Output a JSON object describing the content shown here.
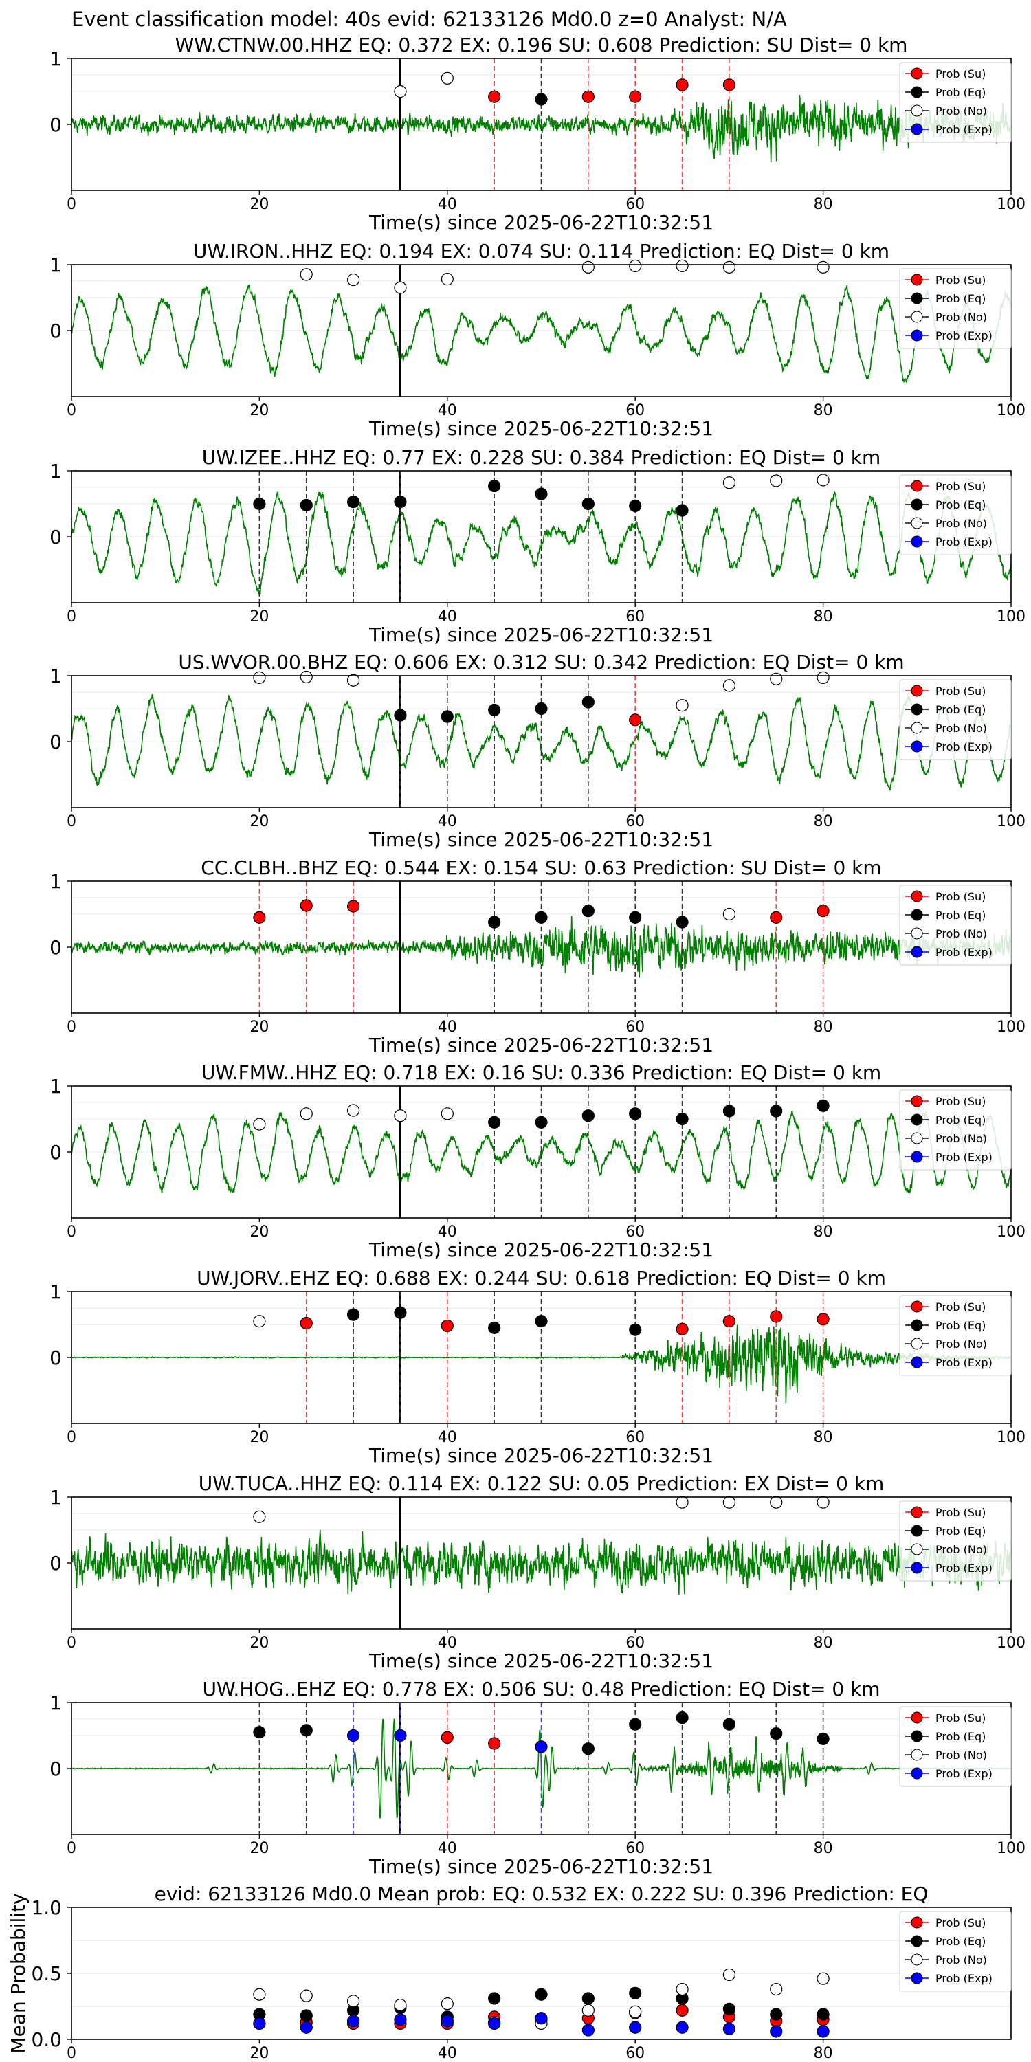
{
  "figure_title": "Event classification model: 40s evid: 62133126 Md0.0 z=0 Analyst: N/A",
  "xlabel": "Time(s) since 2025-06-22T10:32:51",
  "legend": [
    "Prob (Su)",
    "Prob (Eq)",
    "Prob (No)",
    "Prob (Exp)"
  ],
  "colors": {
    "su": "#ff0000",
    "eq": "#000000",
    "no": "#ffffff",
    "exp": "#0000ff",
    "trace": "#008000"
  },
  "chart_data": [
    {
      "type": "line",
      "title": "WW.CTNW.00.HHZ   EQ: 0.372  EX: 0.196  SU: 0.608   Prediction: SU    Dist= 0 km",
      "xlim": [
        0,
        100
      ],
      "ylim": [
        -1,
        1
      ],
      "xticks": [
        0,
        20,
        40,
        60,
        80,
        100
      ],
      "yticks": [
        "0",
        "1"
      ],
      "pick_time": 35,
      "waveform": {
        "style": "noise",
        "amplitude": 0.18,
        "growth_start": 62,
        "growth_peak": 70,
        "peak_amp": 0.6
      },
      "legend_entries": [
        "Prob (Su)",
        "Prob (Eq)",
        "Prob (No)",
        "Prob (Exp)"
      ],
      "points": [
        {
          "t": 35,
          "p": 0.5,
          "cls": "no"
        },
        {
          "t": 40,
          "p": 0.7,
          "cls": "no"
        },
        {
          "t": 45,
          "p": 0.42,
          "cls": "su"
        },
        {
          "t": 50,
          "p": 0.38,
          "cls": "eq"
        },
        {
          "t": 55,
          "p": 0.42,
          "cls": "su"
        },
        {
          "t": 60,
          "p": 0.42,
          "cls": "su"
        },
        {
          "t": 65,
          "p": 0.6,
          "cls": "su"
        },
        {
          "t": 70,
          "p": 0.6,
          "cls": "su"
        }
      ]
    },
    {
      "type": "line",
      "title": "UW.IRON..HHZ   EQ: 0.194  EX: 0.074  SU: 0.114   Prediction: EQ    Dist= 0 km",
      "xlim": [
        0,
        100
      ],
      "ylim": [
        -1,
        1
      ],
      "xticks": [
        0,
        20,
        40,
        60,
        80,
        100
      ],
      "yticks": [
        "0",
        "1"
      ],
      "pick_time": 35,
      "waveform": {
        "style": "swell",
        "amplitude": 0.55,
        "period": 4.5
      },
      "legend_entries": [
        "Prob (Su)",
        "Prob (Eq)",
        "Prob (No)",
        "Prob (Exp)"
      ],
      "points": [
        {
          "t": 25,
          "p": 0.85,
          "cls": "no"
        },
        {
          "t": 30,
          "p": 0.77,
          "cls": "no"
        },
        {
          "t": 35,
          "p": 0.65,
          "cls": "no"
        },
        {
          "t": 40,
          "p": 0.78,
          "cls": "no"
        },
        {
          "t": 55,
          "p": 0.96,
          "cls": "no"
        },
        {
          "t": 60,
          "p": 0.98,
          "cls": "no"
        },
        {
          "t": 65,
          "p": 0.98,
          "cls": "no"
        },
        {
          "t": 70,
          "p": 0.96,
          "cls": "no"
        },
        {
          "t": 80,
          "p": 0.96,
          "cls": "no"
        }
      ]
    },
    {
      "type": "line",
      "title": "UW.IZEE..HHZ   EQ: 0.77  EX: 0.228  SU: 0.384   Prediction: EQ    Dist= 0 km",
      "xlim": [
        0,
        100
      ],
      "ylim": [
        -1,
        1
      ],
      "xticks": [
        0,
        20,
        40,
        60,
        80,
        100
      ],
      "yticks": [
        "0",
        "1"
      ],
      "pick_time": 35,
      "waveform": {
        "style": "swell",
        "amplitude": 0.6,
        "period": 4.2
      },
      "legend_entries": [
        "Prob (Su)",
        "Prob (Eq)",
        "Prob (No)",
        "Prob (Exp)"
      ],
      "points": [
        {
          "t": 20,
          "p": 0.5,
          "cls": "eq"
        },
        {
          "t": 25,
          "p": 0.48,
          "cls": "eq"
        },
        {
          "t": 30,
          "p": 0.53,
          "cls": "eq"
        },
        {
          "t": 35,
          "p": 0.53,
          "cls": "eq"
        },
        {
          "t": 45,
          "p": 0.77,
          "cls": "eq"
        },
        {
          "t": 50,
          "p": 0.65,
          "cls": "eq"
        },
        {
          "t": 55,
          "p": 0.5,
          "cls": "eq"
        },
        {
          "t": 60,
          "p": 0.47,
          "cls": "eq"
        },
        {
          "t": 65,
          "p": 0.4,
          "cls": "eq"
        },
        {
          "t": 70,
          "p": 0.82,
          "cls": "no"
        },
        {
          "t": 75,
          "p": 0.85,
          "cls": "no"
        },
        {
          "t": 80,
          "p": 0.86,
          "cls": "no"
        }
      ]
    },
    {
      "type": "line",
      "title": "US.WVOR.00.BHZ   EQ: 0.606  EX: 0.312  SU: 0.342   Prediction: EQ    Dist= 0 km",
      "xlim": [
        0,
        100
      ],
      "ylim": [
        -1,
        1
      ],
      "xticks": [
        0,
        20,
        40,
        60,
        80,
        100
      ],
      "yticks": [
        "0",
        "1"
      ],
      "pick_time": 35,
      "waveform": {
        "style": "swell",
        "amplitude": 0.55,
        "period": 4.0
      },
      "legend_entries": [
        "Prob (Su)",
        "Prob (Eq)",
        "Prob (No)",
        "Prob (Exp)"
      ],
      "points": [
        {
          "t": 20,
          "p": 0.97,
          "cls": "no"
        },
        {
          "t": 25,
          "p": 0.98,
          "cls": "no"
        },
        {
          "t": 30,
          "p": 0.93,
          "cls": "no"
        },
        {
          "t": 35,
          "p": 0.4,
          "cls": "eq"
        },
        {
          "t": 40,
          "p": 0.38,
          "cls": "eq"
        },
        {
          "t": 45,
          "p": 0.48,
          "cls": "eq"
        },
        {
          "t": 50,
          "p": 0.5,
          "cls": "eq"
        },
        {
          "t": 55,
          "p": 0.6,
          "cls": "eq"
        },
        {
          "t": 60,
          "p": 0.33,
          "cls": "su"
        },
        {
          "t": 65,
          "p": 0.55,
          "cls": "no"
        },
        {
          "t": 70,
          "p": 0.85,
          "cls": "no"
        },
        {
          "t": 75,
          "p": 0.95,
          "cls": "no"
        },
        {
          "t": 80,
          "p": 0.97,
          "cls": "no"
        }
      ]
    },
    {
      "type": "line",
      "title": "CC.CLBH..BHZ   EQ: 0.544  EX: 0.154  SU: 0.63   Prediction: SU    Dist= 0 km",
      "xlim": [
        0,
        100
      ],
      "ylim": [
        -1,
        1
      ],
      "xticks": [
        0,
        20,
        40,
        60,
        80,
        100
      ],
      "yticks": [
        "0",
        "1"
      ],
      "pick_time": 35,
      "waveform": {
        "style": "noise",
        "amplitude": 0.12,
        "growth_start": 36,
        "growth_peak": 56,
        "peak_amp": 0.55
      },
      "legend_entries": [
        "Prob (Su)",
        "Prob (Eq)",
        "Prob (No)",
        "Prob (Exp)"
      ],
      "points": [
        {
          "t": 20,
          "p": 0.45,
          "cls": "su"
        },
        {
          "t": 25,
          "p": 0.63,
          "cls": "su"
        },
        {
          "t": 30,
          "p": 0.62,
          "cls": "su"
        },
        {
          "t": 45,
          "p": 0.38,
          "cls": "eq"
        },
        {
          "t": 50,
          "p": 0.45,
          "cls": "eq"
        },
        {
          "t": 55,
          "p": 0.55,
          "cls": "eq"
        },
        {
          "t": 60,
          "p": 0.45,
          "cls": "eq"
        },
        {
          "t": 65,
          "p": 0.38,
          "cls": "eq"
        },
        {
          "t": 70,
          "p": 0.5,
          "cls": "no"
        },
        {
          "t": 75,
          "p": 0.45,
          "cls": "su"
        },
        {
          "t": 80,
          "p": 0.55,
          "cls": "su"
        }
      ]
    },
    {
      "type": "line",
      "title": "UW.FMW..HHZ   EQ: 0.718  EX: 0.16  SU: 0.336   Prediction: EQ    Dist= 0 km",
      "xlim": [
        0,
        100
      ],
      "ylim": [
        -1,
        1
      ],
      "xticks": [
        0,
        20,
        40,
        60,
        80,
        100
      ],
      "yticks": [
        "0",
        "1"
      ],
      "pick_time": 35,
      "waveform": {
        "style": "swell",
        "amplitude": 0.5,
        "period": 3.6
      },
      "legend_entries": [
        "Prob (Su)",
        "Prob (Eq)",
        "Prob (No)",
        "Prob (Exp)"
      ],
      "points": [
        {
          "t": 20,
          "p": 0.42,
          "cls": "no"
        },
        {
          "t": 25,
          "p": 0.58,
          "cls": "no"
        },
        {
          "t": 30,
          "p": 0.63,
          "cls": "no"
        },
        {
          "t": 35,
          "p": 0.55,
          "cls": "no"
        },
        {
          "t": 40,
          "p": 0.58,
          "cls": "no"
        },
        {
          "t": 45,
          "p": 0.45,
          "cls": "eq"
        },
        {
          "t": 50,
          "p": 0.45,
          "cls": "eq"
        },
        {
          "t": 55,
          "p": 0.55,
          "cls": "eq"
        },
        {
          "t": 60,
          "p": 0.58,
          "cls": "eq"
        },
        {
          "t": 65,
          "p": 0.5,
          "cls": "eq"
        },
        {
          "t": 70,
          "p": 0.62,
          "cls": "eq"
        },
        {
          "t": 75,
          "p": 0.62,
          "cls": "eq"
        },
        {
          "t": 80,
          "p": 0.7,
          "cls": "eq"
        }
      ]
    },
    {
      "type": "line",
      "title": "UW.JORV..EHZ   EQ: 0.688  EX: 0.244  SU: 0.618   Prediction: EQ    Dist= 0 km",
      "xlim": [
        0,
        100
      ],
      "ylim": [
        -1,
        1
      ],
      "xticks": [
        0,
        20,
        40,
        60,
        80,
        100
      ],
      "yticks": [
        "0",
        "1"
      ],
      "pick_time": 35,
      "waveform": {
        "style": "quiet-burst",
        "amplitude": 0.01,
        "growth_start": 58,
        "growth_peak": 75,
        "peak_amp": 0.85
      },
      "legend_entries": [
        "Prob (Su)",
        "Prob (Eq)",
        "Prob (No)",
        "Prob (Exp)"
      ],
      "points": [
        {
          "t": 20,
          "p": 0.55,
          "cls": "no"
        },
        {
          "t": 25,
          "p": 0.52,
          "cls": "su"
        },
        {
          "t": 30,
          "p": 0.65,
          "cls": "eq"
        },
        {
          "t": 35,
          "p": 0.68,
          "cls": "eq"
        },
        {
          "t": 40,
          "p": 0.48,
          "cls": "su"
        },
        {
          "t": 45,
          "p": 0.45,
          "cls": "eq"
        },
        {
          "t": 50,
          "p": 0.55,
          "cls": "eq"
        },
        {
          "t": 60,
          "p": 0.42,
          "cls": "eq"
        },
        {
          "t": 65,
          "p": 0.43,
          "cls": "su"
        },
        {
          "t": 70,
          "p": 0.55,
          "cls": "su"
        },
        {
          "t": 75,
          "p": 0.62,
          "cls": "su"
        },
        {
          "t": 80,
          "p": 0.58,
          "cls": "su"
        }
      ]
    },
    {
      "type": "line",
      "title": "UW.TUCA..HHZ   EQ: 0.114  EX: 0.122  SU: 0.05   Prediction: EX    Dist= 0 km",
      "xlim": [
        0,
        100
      ],
      "ylim": [
        -1,
        1
      ],
      "xticks": [
        0,
        20,
        40,
        60,
        80,
        100
      ],
      "yticks": [
        "0",
        "1"
      ],
      "pick_time": 35,
      "waveform": {
        "style": "noise",
        "amplitude": 0.45
      },
      "legend_entries": [
        "Prob (Su)",
        "Prob (Eq)",
        "Prob (No)",
        "Prob (Exp)"
      ],
      "points": [
        {
          "t": 20,
          "p": 0.7,
          "cls": "no"
        },
        {
          "t": 65,
          "p": 0.92,
          "cls": "no"
        },
        {
          "t": 70,
          "p": 0.92,
          "cls": "no"
        },
        {
          "t": 75,
          "p": 0.92,
          "cls": "no"
        },
        {
          "t": 80,
          "p": 0.92,
          "cls": "no"
        }
      ]
    },
    {
      "type": "line",
      "title": "UW.HOG..EHZ   EQ: 0.778  EX: 0.506  SU: 0.48   Prediction: EQ    Dist= 0 km",
      "xlim": [
        0,
        100
      ],
      "ylim": [
        -1,
        1
      ],
      "xticks": [
        0,
        20,
        40,
        60,
        80,
        100
      ],
      "yticks": [
        "0",
        "1"
      ],
      "pick_time": 35,
      "waveform": {
        "style": "flat-spikes",
        "amplitude": 0.02
      },
      "legend_entries": [
        "Prob (Su)",
        "Prob (Eq)",
        "Prob (No)",
        "Prob (Exp)"
      ],
      "points": [
        {
          "t": 20,
          "p": 0.55,
          "cls": "eq"
        },
        {
          "t": 25,
          "p": 0.58,
          "cls": "eq"
        },
        {
          "t": 30,
          "p": 0.5,
          "cls": "exp"
        },
        {
          "t": 35,
          "p": 0.5,
          "cls": "exp"
        },
        {
          "t": 40,
          "p": 0.47,
          "cls": "su"
        },
        {
          "t": 45,
          "p": 0.38,
          "cls": "su"
        },
        {
          "t": 50,
          "p": 0.33,
          "cls": "exp"
        },
        {
          "t": 55,
          "p": 0.3,
          "cls": "eq"
        },
        {
          "t": 60,
          "p": 0.67,
          "cls": "eq"
        },
        {
          "t": 65,
          "p": 0.77,
          "cls": "eq"
        },
        {
          "t": 70,
          "p": 0.67,
          "cls": "eq"
        },
        {
          "t": 75,
          "p": 0.53,
          "cls": "eq"
        },
        {
          "t": 80,
          "p": 0.45,
          "cls": "eq"
        }
      ]
    },
    {
      "type": "scatter",
      "title": "evid: 62133126  Md0.0    Mean prob:    EQ: 0.532  EX: 0.222  SU: 0.396   Prediction: EQ",
      "ylabel": "Mean Probability",
      "xlim": [
        0,
        100
      ],
      "ylim": [
        0,
        1
      ],
      "xticks": [
        0,
        20,
        40,
        60,
        80
      ],
      "yticks": [
        "0.0",
        "0.5",
        "1.0"
      ],
      "legend_entries": [
        "Prob (Su)",
        "Prob (Eq)",
        "Prob (No)",
        "Prob (Exp)"
      ],
      "series": [
        {
          "name": "Prob (Su)",
          "cls": "su",
          "t": [
            20,
            25,
            30,
            35,
            40,
            45,
            50,
            55,
            60,
            65,
            70,
            75,
            80
          ],
          "values": [
            0.12,
            0.13,
            0.12,
            0.12,
            0.12,
            0.17,
            0.15,
            0.16,
            0.2,
            0.22,
            0.17,
            0.14,
            0.15
          ]
        },
        {
          "name": "Prob (Eq)",
          "cls": "eq",
          "t": [
            20,
            25,
            30,
            35,
            40,
            45,
            50,
            55,
            60,
            65,
            70,
            75,
            80
          ],
          "values": [
            0.19,
            0.18,
            0.22,
            0.24,
            0.17,
            0.31,
            0.34,
            0.31,
            0.35,
            0.31,
            0.23,
            0.19,
            0.19
          ]
        },
        {
          "name": "Prob (No)",
          "cls": "no",
          "t": [
            20,
            25,
            30,
            35,
            40,
            45,
            50,
            55,
            60,
            65,
            70,
            75,
            80
          ],
          "values": [
            0.34,
            0.33,
            0.29,
            0.26,
            0.27,
            0.13,
            0.12,
            0.22,
            0.21,
            0.38,
            0.49,
            0.38,
            0.46
          ]
        },
        {
          "name": "Prob (Exp)",
          "cls": "exp",
          "t": [
            20,
            25,
            30,
            35,
            40,
            45,
            50,
            55,
            60,
            65,
            70,
            75,
            80
          ],
          "values": [
            0.12,
            0.09,
            0.14,
            0.15,
            0.14,
            0.12,
            0.16,
            0.07,
            0.09,
            0.09,
            0.08,
            0.06,
            0.06
          ]
        }
      ]
    }
  ]
}
